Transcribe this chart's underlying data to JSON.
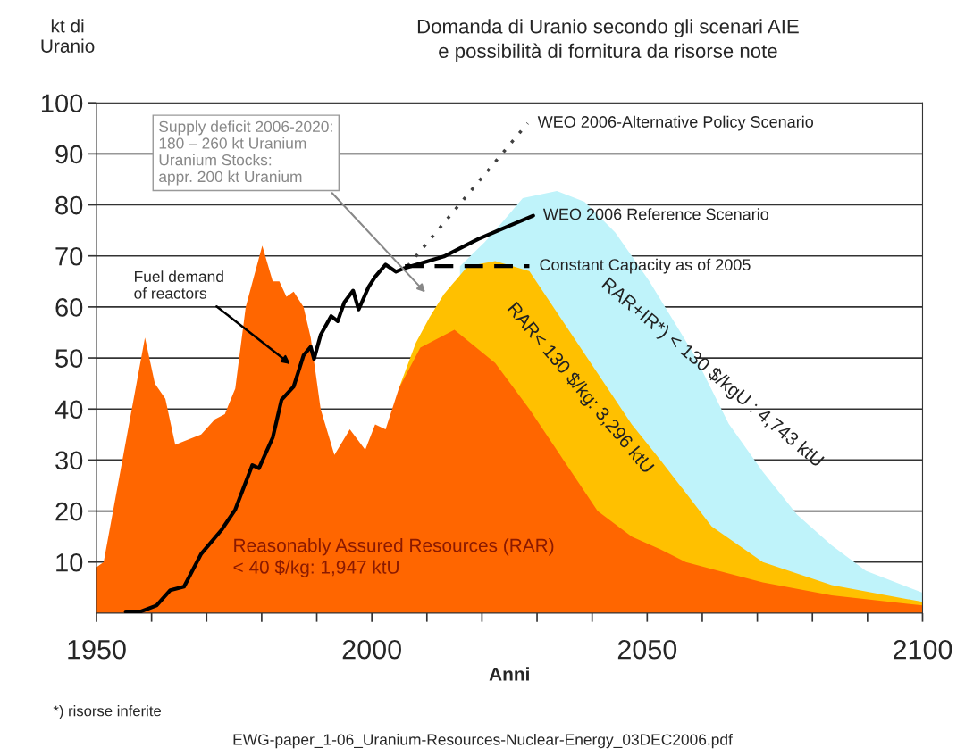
{
  "chart_data": {
    "type": "area",
    "title": "Domanda di Uranio secondo gli scenari AIE\ne possibilità di fornitura da risorse note",
    "xlabel": "Anni",
    "ylabel": "kt di\nUranio",
    "xlim": [
      1950,
      2100
    ],
    "xticks": [
      1950,
      {
        "value": 1960,
        "label": null
      },
      {
        "value": 1970,
        "label": null
      },
      {
        "value": 1980,
        "label": null
      },
      {
        "value": 1990,
        "label": null
      },
      2000,
      {
        "value": 2010,
        "label": null
      },
      {
        "value": 2020,
        "label": null
      },
      {
        "value": 2030,
        "label": null
      },
      {
        "value": 2040,
        "label": null
      },
      2050,
      {
        "value": 2060,
        "label": null
      },
      {
        "value": 2070,
        "label": null
      },
      {
        "value": 2080,
        "label": null
      },
      {
        "value": 2090,
        "label": null
      },
      2100
    ],
    "ylim": [
      0,
      100
    ],
    "yticks": [
      10,
      20,
      30,
      40,
      50,
      60,
      70,
      80,
      90,
      100
    ],
    "grid": "y",
    "legend": false,
    "series": [
      {
        "color": "#bff3fa",
        "x": [
          2016,
          2020.5,
          2024,
          2027.4,
          2033.6,
          2038.6,
          2044.2,
          2050.3,
          2058.6,
          2064.8,
          2071,
          2077.2,
          2083.5,
          2089.7,
          2100
        ],
        "values": [
          68,
          72.7,
          77,
          81.3,
          82.7,
          80.6,
          74.6,
          65.2,
          50.5,
          37.1,
          27.7,
          19.3,
          13.3,
          8.3,
          4
        ]
      },
      {
        "color": "#ffc000",
        "x": [
          2004.9,
          2008,
          2010.5,
          2013.1,
          2017.4,
          2022.4,
          2028.6,
          2034.8,
          2041,
          2047.2,
          2052.4,
          2061.7,
          2071,
          2083.5,
          2100
        ],
        "values": [
          44,
          53,
          58,
          62.5,
          68,
          69,
          67,
          57,
          47,
          37,
          30,
          17,
          10,
          5.5,
          2.2
        ]
      },
      {
        "color": "#ff6600",
        "x": [
          1950,
          1951.3,
          1958.8,
          1960.6,
          1962.5,
          1964.3,
          1969,
          1971.5,
          1973.3,
          1975.2,
          1977.1,
          1980.1,
          1982,
          1983.2,
          1984.5,
          1985.8,
          1987.6,
          1988.9,
          1990.7,
          1993.2,
          1996,
          1998.8,
          2000.6,
          2002.5,
          2004.9,
          2008.8,
          2015,
          2022.4,
          2028.6,
          2034.8,
          2041,
          2047.2,
          2052.4,
          2057,
          2064,
          2071,
          2083.5,
          2100
        ],
        "values": [
          9,
          10,
          54,
          45,
          42,
          33,
          35,
          38,
          39,
          44,
          60,
          72,
          65,
          65,
          62,
          63,
          60,
          54,
          40,
          31,
          36,
          32,
          37,
          36,
          44,
          52,
          55.5,
          49,
          40,
          30,
          20,
          15,
          12.5,
          10,
          8,
          6,
          3.5,
          1.5
        ]
      },
      {
        "type": "line",
        "color": "#000000",
        "line_style": "solid",
        "x": [
          1955.3,
          1958,
          1960.9,
          1963.4,
          1965.9,
          1969,
          1972.7,
          1975.2,
          1978.3,
          1979.5,
          1982,
          1983.6,
          1985.8,
          1987.6,
          1988.9,
          1989.5,
          1990.7,
          1992.6,
          1993.8,
          1995,
          1996.6,
          1997.6,
          1999.4,
          2000.6,
          2002.5,
          2004.4,
          2005.9,
          2013.1,
          2019.3,
          2029.3
        ],
        "values": [
          0.3,
          0.3,
          1.5,
          4.5,
          5.2,
          11.6,
          16.3,
          20.3,
          29,
          28.4,
          34.4,
          41.8,
          44.4,
          50.5,
          52.2,
          49.8,
          54.5,
          58.2,
          57.2,
          60.9,
          63.2,
          59.5,
          63.9,
          65.9,
          68.3,
          66.9,
          67.6,
          69.9,
          73.3,
          77.9
        ]
      },
      {
        "type": "line",
        "color": "#404040",
        "line_style": "dotted",
        "x": [
          2006.5,
          2028.3
        ],
        "values": [
          68,
          96
        ]
      },
      {
        "type": "line",
        "color": "#000000",
        "line_style": "dashed",
        "x": [
          2006,
          2028.6
        ],
        "values": [
          68,
          68
        ]
      }
    ],
    "annotations": [
      "Supply deficit 2006-2020:\n180 – 260 kt Uranium\nUranium Stocks:\nappr. 200 kt Uranium",
      "Fuel demand\nof reactors",
      {
        "text": "WEO 2006-Alternative Policy Scenario",
        "x": 2028.3,
        "y": 96
      },
      {
        "text": "WEO 2006 Reference Scenario",
        "x": 2029.3,
        "y": 77.9
      },
      {
        "text": "Constant Capacity as of 2005",
        "x": 2028.6,
        "y": 68
      },
      "Reasonably Assured Resources (RAR)\n< 40 $/kg: 1,947 ktU",
      "RAR< 130 $/kg: 3,296 ktU",
      "RAR+IR*) < 130 $/kgU : 4,743 ktU",
      "*) risorse inferite",
      "EWG-paper_1-06_Uranium-Resources-Nuclear-Energy_03DEC2006.pdf"
    ]
  }
}
